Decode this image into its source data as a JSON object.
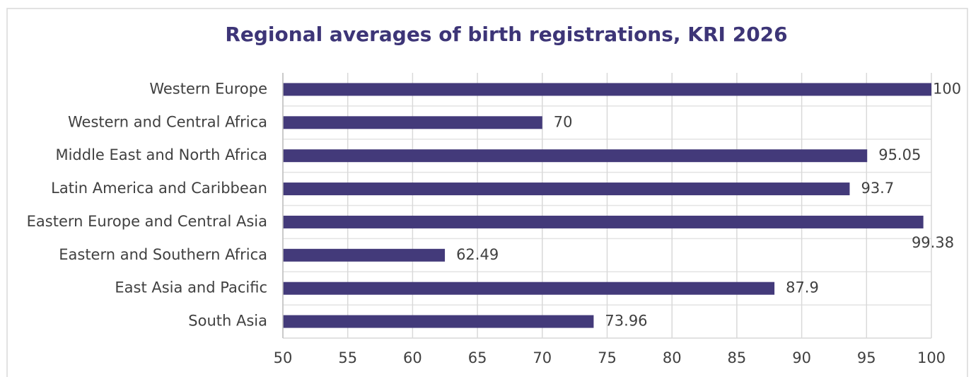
{
  "chart_data": {
    "type": "bar",
    "orientation": "horizontal",
    "title": "Regional averages of birth registrations, KRI 2026",
    "categories": [
      "Western Europe",
      "Western and Central Africa",
      "Middle East and North Africa",
      "Latin America and Caribbean",
      "Eastern Europe and Central Asia",
      "Eastern and Southern Africa",
      "East Asia and Pacific",
      "South Asia"
    ],
    "values": [
      100,
      70,
      95.05,
      93.7,
      99.38,
      62.49,
      87.9,
      73.96
    ],
    "color": "#433a7a",
    "xlim": [
      50,
      100
    ],
    "xticks": [
      50,
      55,
      60,
      65,
      70,
      75,
      80,
      85,
      90,
      95,
      100
    ],
    "grid": true
  }
}
